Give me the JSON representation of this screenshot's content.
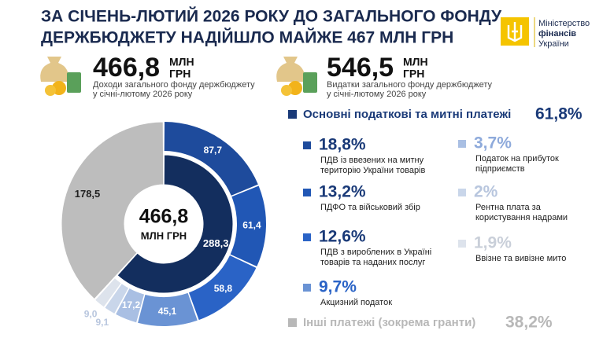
{
  "header": {
    "title_lines": [
      "ЗА СІЧЕНЬ-ЛЮТИЙ 2026 РОКУ ДО ЗАГАЛЬНОГО ФОНДУ",
      "ДЕРЖБЮДЖЕТУ НАДІЙШЛО МАЙЖЕ 467 МЛН ГРН"
    ],
    "logo": [
      "Міністерство",
      "фінансів",
      "України"
    ]
  },
  "stats": [
    {
      "value": "466,8",
      "unit": [
        "МЛН",
        "ГРН"
      ],
      "description": [
        "Доходи загального фонду держбюджету",
        "у січні-лютому 2026 року"
      ]
    },
    {
      "value": "546,5",
      "unit": [
        "МЛН",
        "ГРН"
      ],
      "description": [
        "Видатки загального фонду держбюджету",
        "у січні-лютому 2026 року"
      ]
    }
  ],
  "legend": {
    "main": {
      "label": "Основні податкові та митні платежі",
      "share": "61,8%",
      "color": "#1a3a78"
    },
    "items": [
      {
        "share": "18,8%",
        "label": [
          "ПДВ із ввезених на митну",
          "територію України товарів"
        ],
        "color": "#1e4b9c",
        "text_color": "#1a3a78"
      },
      {
        "share": "13,2%",
        "label": [
          "ПДФО та військовий збір"
        ],
        "color": "#2157b5",
        "text_color": "#1a3a78"
      },
      {
        "share": "12,6%",
        "label": [
          "ПДВ з вироблених в Україні",
          "товарів та наданих послуг"
        ],
        "color": "#2a63c6",
        "text_color": "#1a3a78"
      },
      {
        "share": "9,7%",
        "label": [
          "Акцизний податок"
        ],
        "color": "#6a93d4",
        "text_color": "#2a63c6"
      },
      {
        "share": "3,7%",
        "label": [
          "Податок на прибуток",
          "підприємств"
        ],
        "color": "#a9bfe3",
        "text_color": "#8eaadb"
      },
      {
        "share": "2%",
        "label": [
          "Рентна плата за",
          "користування надрами"
        ],
        "color": "#c9d6ea",
        "text_color": "#b8c6de"
      },
      {
        "share": "1,9%",
        "label": [
          "Ввізне та вивізне мито"
        ],
        "color": "#dde3ec",
        "text_color": "#c9cfd9"
      }
    ],
    "other": {
      "label": "Інші платежі (зокрема гранти)",
      "share": "38,2%",
      "color": "#b8b8b8"
    }
  },
  "chart_data": {
    "type": "donut",
    "center_label": [
      "466,8",
      "МЛН ГРН"
    ],
    "outer": {
      "values": [
        87.7,
        61.4,
        58.8,
        45.1,
        17.2,
        9.1,
        9.0
      ],
      "value_labels": [
        "87,7",
        "61,4",
        "58,8",
        "45,1",
        "17,2",
        "9,1",
        "9,0"
      ],
      "colors": [
        "#1e4b9c",
        "#2157b5",
        "#2a63c6",
        "#6a93d4",
        "#a9bfe3",
        "#c9d6ea",
        "#dde3ec"
      ]
    },
    "inner": {
      "values": [
        288.3,
        178.5
      ],
      "value_labels": [
        "288,3",
        "178,5"
      ],
      "colors": [
        "#132e5e",
        "#bdbdbd"
      ]
    }
  }
}
